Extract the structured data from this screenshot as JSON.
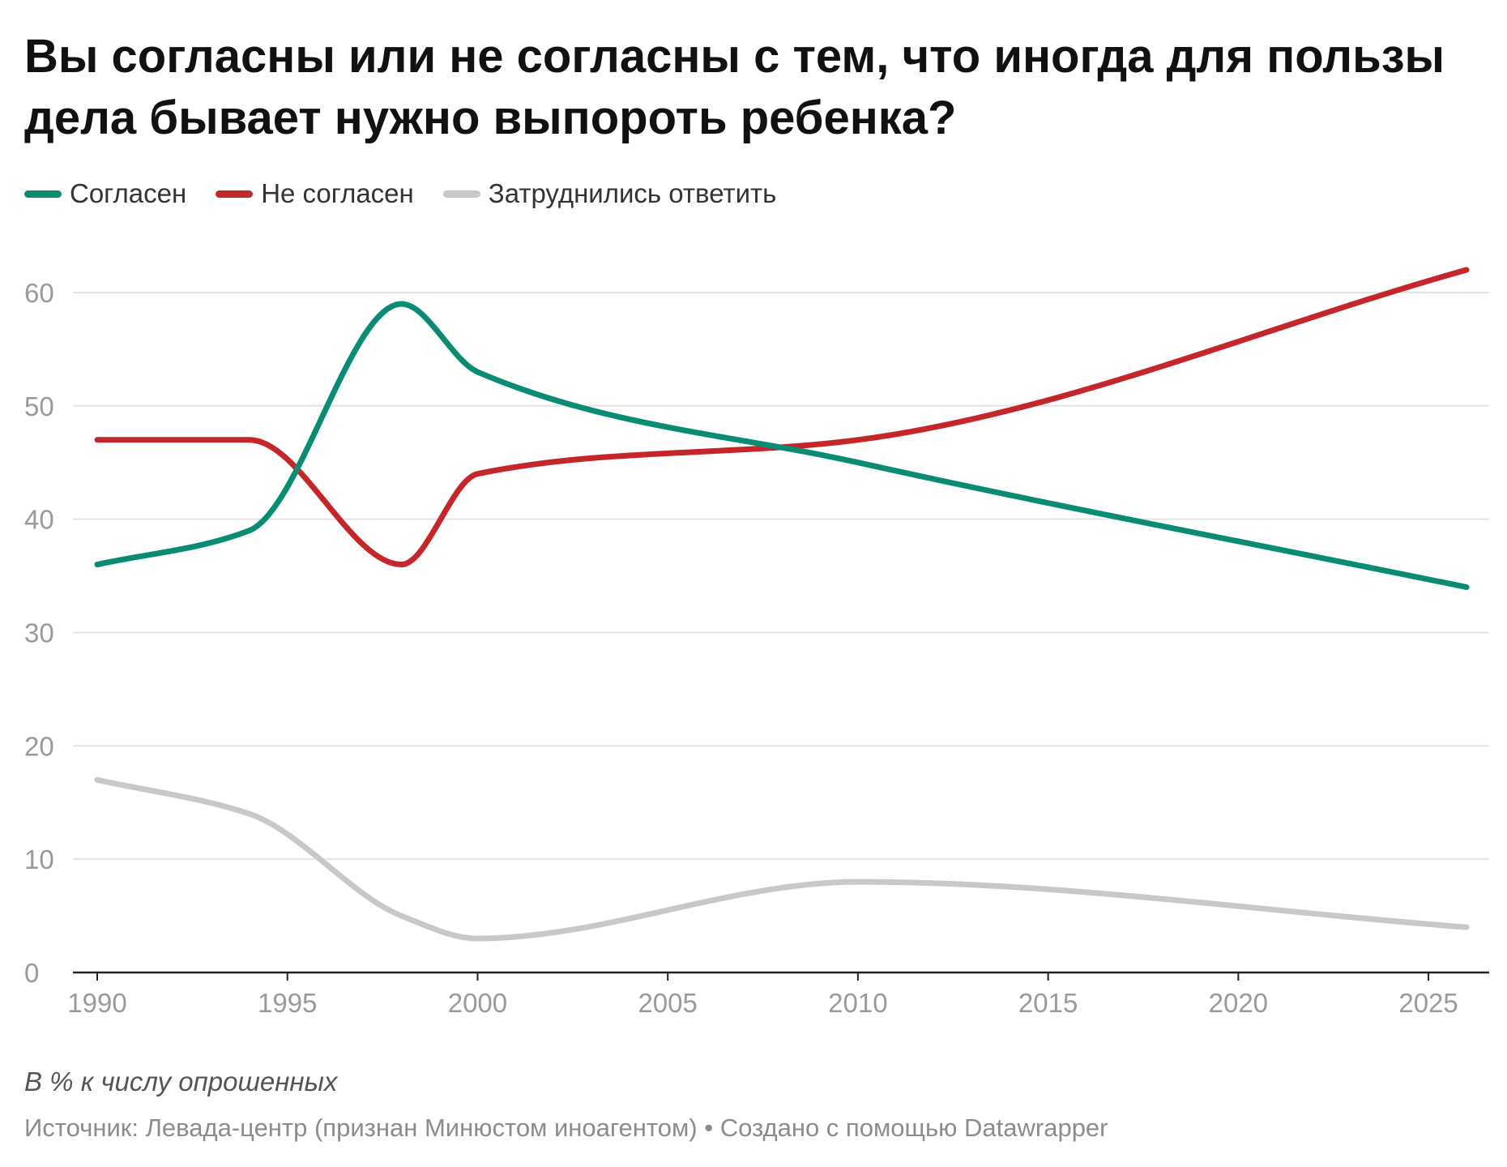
{
  "title": "Вы согласны или не согласны с тем, что иногда для пользы дела бывает нужно выпороть ребенка?",
  "legend": [
    {
      "label": "Согласен",
      "color": "#0a8c74"
    },
    {
      "label": "Не согласен",
      "color": "#c4262a"
    },
    {
      "label": "Затруднились ответить",
      "color": "#c8c8c8"
    }
  ],
  "note": "В % к числу опрошенных",
  "source": "Источник: Левада-центр (признан Минюстом иноагентом) • Создано с помощью Datawrapper",
  "chart_data": {
    "type": "line",
    "title": "Вы согласны или не согласны с тем, что иногда для пользы дела бывает нужно выпороть ребенка?",
    "xlabel": "",
    "ylabel": "",
    "xlim": [
      1990,
      2026
    ],
    "ylim": [
      0,
      62
    ],
    "x_ticks": [
      1990,
      1995,
      2000,
      2005,
      2010,
      2015,
      2020,
      2025
    ],
    "y_ticks": [
      0,
      10,
      20,
      30,
      40,
      50,
      60
    ],
    "grid": true,
    "legend_position": "top-left",
    "series": [
      {
        "name": "Согласен",
        "color": "#0a8c74",
        "x": [
          1990,
          1994,
          1998,
          2000,
          2010,
          2026
        ],
        "y": [
          36,
          39,
          59,
          53,
          45,
          34
        ]
      },
      {
        "name": "Не согласен",
        "color": "#c4262a",
        "x": [
          1990,
          1994,
          1998,
          2000,
          2010,
          2026
        ],
        "y": [
          47,
          47,
          36,
          44,
          47,
          62
        ]
      },
      {
        "name": "Затруднились ответить",
        "color": "#c8c8c8",
        "x": [
          1990,
          1994,
          1998,
          2000,
          2010,
          2026
        ],
        "y": [
          17,
          14,
          5,
          3,
          8,
          4
        ]
      }
    ]
  }
}
